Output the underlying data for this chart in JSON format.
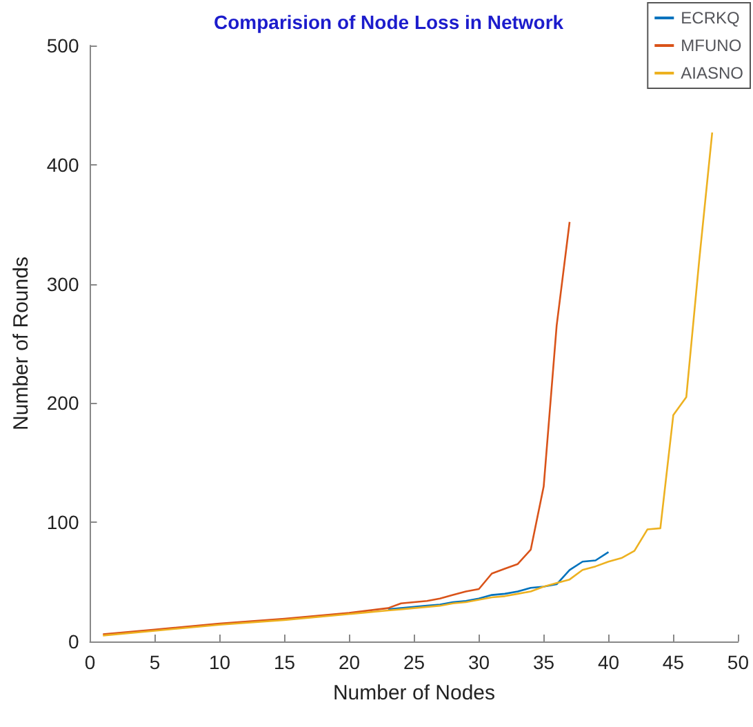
{
  "chart_data": {
    "type": "line",
    "title": "Comparision of Node Loss in Network",
    "xlabel": "Number of Nodes",
    "ylabel": "Number of Rounds",
    "x": [
      1,
      5,
      10,
      15,
      20,
      23,
      24,
      25,
      26,
      27,
      28,
      29,
      30,
      31,
      32,
      33,
      34,
      35,
      36,
      37,
      38,
      39,
      40,
      41,
      42,
      43,
      44,
      45,
      46,
      47,
      48
    ],
    "series": [
      {
        "name": "ECRKQ",
        "color": "#0072bd",
        "values": [
          null,
          null,
          null,
          null,
          null,
          27,
          28,
          29,
          30,
          31,
          33,
          34,
          36,
          39,
          40,
          42,
          45,
          46,
          48,
          60,
          67,
          68,
          75,
          null,
          null,
          null,
          null,
          null,
          null,
          null,
          null
        ]
      },
      {
        "name": "MFUNO",
        "color": "#d95319",
        "values": [
          6,
          10,
          15,
          19,
          24,
          28,
          32,
          33,
          34,
          36,
          39,
          42,
          44,
          57,
          61,
          65,
          77,
          130,
          265,
          352,
          null,
          null,
          null,
          null,
          null,
          null,
          null,
          null,
          null,
          null,
          null
        ]
      },
      {
        "name": "AIASNO",
        "color": "#edb120",
        "values": [
          5,
          9,
          14,
          18,
          23,
          26,
          27,
          28,
          29,
          30,
          32,
          33,
          35,
          37,
          38,
          40,
          42,
          46,
          49,
          52,
          60,
          63,
          67,
          70,
          76,
          94,
          95,
          190,
          205,
          320,
          427
        ]
      }
    ],
    "xlim": [
      0,
      50
    ],
    "xticks": [
      0,
      5,
      10,
      15,
      20,
      25,
      30,
      35,
      40,
      45,
      50
    ],
    "ylim": [
      0,
      500
    ],
    "yticks": [
      0,
      100,
      200,
      300,
      400,
      500
    ],
    "legend": "top right",
    "marker": "none",
    "line_style": "solid"
  }
}
